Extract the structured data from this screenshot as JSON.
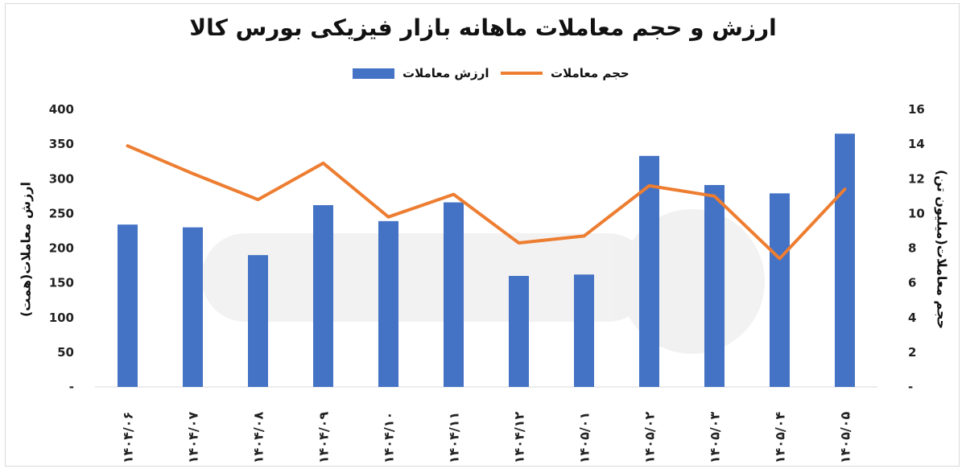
{
  "chart_data": {
    "type": "bar",
    "title": "ارزش و حجم معاملات ماهانه بازار فیزیکی بورس کالا",
    "categories": [
      "۱۴۰۴/۰۶",
      "۱۴۰۴/۰۷",
      "۱۴۰۴/۰۸",
      "۱۴۰۴/۰۹",
      "۱۴۰۴/۱۰",
      "۱۴۰۴/۱۱",
      "۱۴۰۴/۱۲",
      "۱۴۰۵/۰۱",
      "۱۴۰۵/۰۲",
      "۱۴۰۵/۰۳",
      "۱۴۰۵/۰۴",
      "۱۴۰۵/۰۵"
    ],
    "series": [
      {
        "name": "ارزش معاملات",
        "type": "bar",
        "axis": "left",
        "color": "#4472C4",
        "values": [
          234,
          230,
          190,
          262,
          239,
          266,
          160,
          162,
          333,
          291,
          279,
          365
        ]
      },
      {
        "name": "حجم معاملات",
        "type": "line",
        "axis": "right",
        "color": "#ED7D31",
        "values": [
          13.9,
          12.3,
          10.8,
          12.9,
          9.8,
          11.1,
          8.3,
          8.7,
          11.6,
          11.0,
          7.4,
          11.4
        ]
      }
    ],
    "ylabel": "ارزش معاملات(همت)",
    "y2label": "حجم معاملات(میلیون تن)",
    "ylim": [
      0,
      400
    ],
    "y2lim": [
      0,
      16
    ],
    "yticks": [
      "-",
      "50",
      "100",
      "150",
      "200",
      "250",
      "300",
      "350",
      "400"
    ],
    "y2ticks": [
      "-",
      "2",
      "4",
      "6",
      "8",
      "10",
      "12",
      "14",
      "16"
    ],
    "grid": false,
    "legend_position": "top"
  }
}
